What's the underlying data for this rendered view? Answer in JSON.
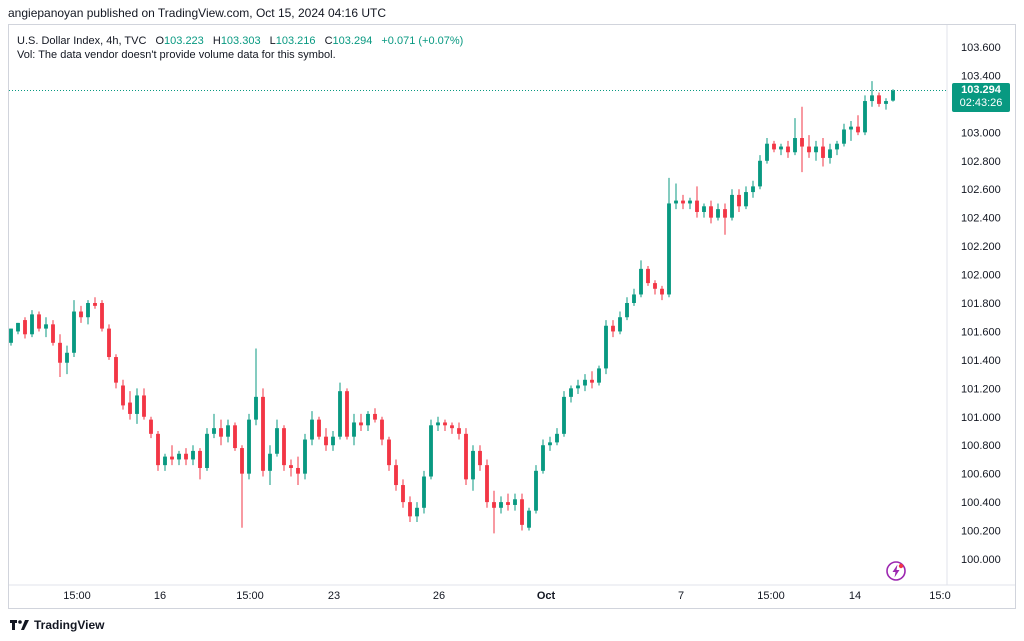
{
  "header": {
    "publisher_text": "angiepanoyan published on TradingView.com, Oct 15, 2024 04:16 UTC"
  },
  "legend": {
    "symbol": "U.S. Dollar Index, 4h, TVC",
    "o_label": "O",
    "o_value": "103.223",
    "h_label": "H",
    "h_value": "103.303",
    "l_label": "L",
    "l_value": "103.216",
    "c_label": "C",
    "c_value": "103.294",
    "change": "+0.071 (+0.07%)",
    "vol_note": "Vol: The data vendor doesn't provide volume data for this symbol."
  },
  "price_label": {
    "price": "103.294",
    "countdown": "02:43:26"
  },
  "footer": {
    "brand": "TradingView"
  },
  "colors": {
    "up": "#089981",
    "down": "#f23645",
    "axis_text": "#131722",
    "last_line": "#089981"
  },
  "icons": {
    "logo": "tradingview-logo-icon",
    "flash": "flash-icon"
  },
  "chart_data": {
    "type": "candlestick",
    "symbol": "U.S. Dollar Index",
    "interval": "4h",
    "source": "TVC",
    "y_axis": {
      "ticks": [
        "103.600",
        "103.400",
        "103.200",
        "103.000",
        "102.800",
        "102.600",
        "102.400",
        "102.200",
        "102.000",
        "101.800",
        "101.600",
        "101.400",
        "101.200",
        "101.000",
        "100.800",
        "100.600",
        "100.400",
        "100.200",
        "100.000"
      ],
      "range": [
        99.9,
        103.7
      ]
    },
    "x_axis": {
      "tick_labels": [
        "15:00",
        "16",
        "15:00",
        "23",
        "26",
        "Oct",
        "7",
        "15:00",
        "14",
        "15:0"
      ]
    },
    "last_price": 103.294,
    "candles": [
      {
        "o": 101.52,
        "h": 101.62,
        "l": 101.5,
        "c": 101.62
      },
      {
        "o": 101.6,
        "h": 101.66,
        "l": 101.58,
        "c": 101.66
      },
      {
        "o": 101.68,
        "h": 101.7,
        "l": 101.55,
        "c": 101.58
      },
      {
        "o": 101.58,
        "h": 101.75,
        "l": 101.56,
        "c": 101.72
      },
      {
        "o": 101.72,
        "h": 101.74,
        "l": 101.6,
        "c": 101.62
      },
      {
        "o": 101.62,
        "h": 101.7,
        "l": 101.56,
        "c": 101.65
      },
      {
        "o": 101.65,
        "h": 101.68,
        "l": 101.5,
        "c": 101.52
      },
      {
        "o": 101.52,
        "h": 101.58,
        "l": 101.28,
        "c": 101.38
      },
      {
        "o": 101.38,
        "h": 101.5,
        "l": 101.3,
        "c": 101.45
      },
      {
        "o": 101.45,
        "h": 101.82,
        "l": 101.42,
        "c": 101.74
      },
      {
        "o": 101.74,
        "h": 101.78,
        "l": 101.66,
        "c": 101.7
      },
      {
        "o": 101.7,
        "h": 101.82,
        "l": 101.65,
        "c": 101.8
      },
      {
        "o": 101.8,
        "h": 101.84,
        "l": 101.76,
        "c": 101.78
      },
      {
        "o": 101.8,
        "h": 101.82,
        "l": 101.6,
        "c": 101.62
      },
      {
        "o": 101.62,
        "h": 101.65,
        "l": 101.4,
        "c": 101.42
      },
      {
        "o": 101.42,
        "h": 101.44,
        "l": 101.2,
        "c": 101.24
      },
      {
        "o": 101.22,
        "h": 101.26,
        "l": 101.05,
        "c": 101.08
      },
      {
        "o": 101.1,
        "h": 101.18,
        "l": 100.98,
        "c": 101.02
      },
      {
        "o": 101.02,
        "h": 101.2,
        "l": 100.95,
        "c": 101.15
      },
      {
        "o": 101.15,
        "h": 101.2,
        "l": 100.98,
        "c": 101.0
      },
      {
        "o": 100.98,
        "h": 101.0,
        "l": 100.85,
        "c": 100.88
      },
      {
        "o": 100.88,
        "h": 100.9,
        "l": 100.62,
        "c": 100.66
      },
      {
        "o": 100.66,
        "h": 100.74,
        "l": 100.62,
        "c": 100.72
      },
      {
        "o": 100.72,
        "h": 100.8,
        "l": 100.66,
        "c": 100.7
      },
      {
        "o": 100.7,
        "h": 100.76,
        "l": 100.66,
        "c": 100.74
      },
      {
        "o": 100.74,
        "h": 100.78,
        "l": 100.66,
        "c": 100.7
      },
      {
        "o": 100.7,
        "h": 100.8,
        "l": 100.66,
        "c": 100.76
      },
      {
        "o": 100.76,
        "h": 100.78,
        "l": 100.56,
        "c": 100.64
      },
      {
        "o": 100.64,
        "h": 100.92,
        "l": 100.62,
        "c": 100.88
      },
      {
        "o": 100.88,
        "h": 101.02,
        "l": 100.85,
        "c": 100.92
      },
      {
        "o": 100.92,
        "h": 100.98,
        "l": 100.8,
        "c": 100.86
      },
      {
        "o": 100.86,
        "h": 100.98,
        "l": 100.82,
        "c": 100.94
      },
      {
        "o": 100.94,
        "h": 100.96,
        "l": 100.76,
        "c": 100.78
      },
      {
        "o": 100.78,
        "h": 100.8,
        "l": 100.22,
        "c": 100.6
      },
      {
        "o": 100.6,
        "h": 101.02,
        "l": 100.56,
        "c": 100.98
      },
      {
        "o": 100.98,
        "h": 101.48,
        "l": 100.94,
        "c": 101.14
      },
      {
        "o": 101.14,
        "h": 101.2,
        "l": 100.58,
        "c": 100.62
      },
      {
        "o": 100.62,
        "h": 100.8,
        "l": 100.52,
        "c": 100.74
      },
      {
        "o": 100.74,
        "h": 100.98,
        "l": 100.72,
        "c": 100.92
      },
      {
        "o": 100.92,
        "h": 100.94,
        "l": 100.62,
        "c": 100.66
      },
      {
        "o": 100.66,
        "h": 100.7,
        "l": 100.58,
        "c": 100.64
      },
      {
        "o": 100.64,
        "h": 100.72,
        "l": 100.52,
        "c": 100.6
      },
      {
        "o": 100.6,
        "h": 100.88,
        "l": 100.56,
        "c": 100.84
      },
      {
        "o": 100.84,
        "h": 101.04,
        "l": 100.8,
        "c": 100.98
      },
      {
        "o": 100.98,
        "h": 101.0,
        "l": 100.84,
        "c": 100.86
      },
      {
        "o": 100.86,
        "h": 100.92,
        "l": 100.76,
        "c": 100.8
      },
      {
        "o": 100.8,
        "h": 100.9,
        "l": 100.76,
        "c": 100.86
      },
      {
        "o": 100.86,
        "h": 101.24,
        "l": 100.84,
        "c": 101.18
      },
      {
        "o": 101.18,
        "h": 101.2,
        "l": 100.84,
        "c": 100.86
      },
      {
        "o": 100.86,
        "h": 101.02,
        "l": 100.8,
        "c": 100.96
      },
      {
        "o": 100.96,
        "h": 101.02,
        "l": 100.9,
        "c": 100.94
      },
      {
        "o": 100.94,
        "h": 101.04,
        "l": 100.9,
        "c": 101.02
      },
      {
        "o": 101.02,
        "h": 101.06,
        "l": 100.96,
        "c": 100.98
      },
      {
        "o": 100.98,
        "h": 101.0,
        "l": 100.8,
        "c": 100.84
      },
      {
        "o": 100.84,
        "h": 100.86,
        "l": 100.62,
        "c": 100.66
      },
      {
        "o": 100.66,
        "h": 100.7,
        "l": 100.48,
        "c": 100.52
      },
      {
        "o": 100.52,
        "h": 100.56,
        "l": 100.36,
        "c": 100.4
      },
      {
        "o": 100.4,
        "h": 100.44,
        "l": 100.26,
        "c": 100.3
      },
      {
        "o": 100.3,
        "h": 100.4,
        "l": 100.26,
        "c": 100.36
      },
      {
        "o": 100.36,
        "h": 100.62,
        "l": 100.32,
        "c": 100.58
      },
      {
        "o": 100.58,
        "h": 100.98,
        "l": 100.56,
        "c": 100.94
      },
      {
        "o": 100.94,
        "h": 101.0,
        "l": 100.9,
        "c": 100.96
      },
      {
        "o": 100.96,
        "h": 100.98,
        "l": 100.9,
        "c": 100.94
      },
      {
        "o": 100.94,
        "h": 100.96,
        "l": 100.88,
        "c": 100.92
      },
      {
        "o": 100.92,
        "h": 100.96,
        "l": 100.84,
        "c": 100.88
      },
      {
        "o": 100.88,
        "h": 100.92,
        "l": 100.52,
        "c": 100.56
      },
      {
        "o": 100.56,
        "h": 100.8,
        "l": 100.48,
        "c": 100.76
      },
      {
        "o": 100.76,
        "h": 100.8,
        "l": 100.62,
        "c": 100.66
      },
      {
        "o": 100.66,
        "h": 100.7,
        "l": 100.36,
        "c": 100.4
      },
      {
        "o": 100.4,
        "h": 100.48,
        "l": 100.18,
        "c": 100.36
      },
      {
        "o": 100.36,
        "h": 100.44,
        "l": 100.32,
        "c": 100.4
      },
      {
        "o": 100.4,
        "h": 100.46,
        "l": 100.34,
        "c": 100.38
      },
      {
        "o": 100.38,
        "h": 100.46,
        "l": 100.34,
        "c": 100.42
      },
      {
        "o": 100.42,
        "h": 100.46,
        "l": 100.2,
        "c": 100.24
      },
      {
        "o": 100.22,
        "h": 100.36,
        "l": 100.2,
        "c": 100.34
      },
      {
        "o": 100.34,
        "h": 100.66,
        "l": 100.32,
        "c": 100.62
      },
      {
        "o": 100.62,
        "h": 100.84,
        "l": 100.6,
        "c": 100.8
      },
      {
        "o": 100.8,
        "h": 100.86,
        "l": 100.76,
        "c": 100.82
      },
      {
        "o": 100.82,
        "h": 100.92,
        "l": 100.8,
        "c": 100.88
      },
      {
        "o": 100.88,
        "h": 101.18,
        "l": 100.86,
        "c": 101.14
      },
      {
        "o": 101.14,
        "h": 101.22,
        "l": 101.1,
        "c": 101.2
      },
      {
        "o": 101.2,
        "h": 101.26,
        "l": 101.16,
        "c": 101.22
      },
      {
        "o": 101.22,
        "h": 101.3,
        "l": 101.18,
        "c": 101.26
      },
      {
        "o": 101.26,
        "h": 101.32,
        "l": 101.2,
        "c": 101.24
      },
      {
        "o": 101.24,
        "h": 101.36,
        "l": 101.22,
        "c": 101.34
      },
      {
        "o": 101.34,
        "h": 101.68,
        "l": 101.3,
        "c": 101.64
      },
      {
        "o": 101.64,
        "h": 101.68,
        "l": 101.56,
        "c": 101.6
      },
      {
        "o": 101.6,
        "h": 101.74,
        "l": 101.58,
        "c": 101.7
      },
      {
        "o": 101.7,
        "h": 101.84,
        "l": 101.68,
        "c": 101.8
      },
      {
        "o": 101.8,
        "h": 101.9,
        "l": 101.78,
        "c": 101.86
      },
      {
        "o": 101.86,
        "h": 102.1,
        "l": 101.84,
        "c": 102.04
      },
      {
        "o": 102.04,
        "h": 102.06,
        "l": 101.92,
        "c": 101.94
      },
      {
        "o": 101.94,
        "h": 101.96,
        "l": 101.86,
        "c": 101.9
      },
      {
        "o": 101.9,
        "h": 101.92,
        "l": 101.82,
        "c": 101.86
      },
      {
        "o": 101.86,
        "h": 102.68,
        "l": 101.84,
        "c": 102.5
      },
      {
        "o": 102.5,
        "h": 102.64,
        "l": 102.46,
        "c": 102.52
      },
      {
        "o": 102.52,
        "h": 102.56,
        "l": 102.46,
        "c": 102.5
      },
      {
        "o": 102.5,
        "h": 102.54,
        "l": 102.46,
        "c": 102.52
      },
      {
        "o": 102.52,
        "h": 102.62,
        "l": 102.4,
        "c": 102.44
      },
      {
        "o": 102.44,
        "h": 102.5,
        "l": 102.4,
        "c": 102.48
      },
      {
        "o": 102.48,
        "h": 102.52,
        "l": 102.36,
        "c": 102.4
      },
      {
        "o": 102.4,
        "h": 102.5,
        "l": 102.38,
        "c": 102.46
      },
      {
        "o": 102.46,
        "h": 102.5,
        "l": 102.28,
        "c": 102.4
      },
      {
        "o": 102.4,
        "h": 102.6,
        "l": 102.38,
        "c": 102.56
      },
      {
        "o": 102.56,
        "h": 102.6,
        "l": 102.44,
        "c": 102.48
      },
      {
        "o": 102.48,
        "h": 102.62,
        "l": 102.46,
        "c": 102.58
      },
      {
        "o": 102.58,
        "h": 102.66,
        "l": 102.54,
        "c": 102.62
      },
      {
        "o": 102.62,
        "h": 102.84,
        "l": 102.6,
        "c": 102.8
      },
      {
        "o": 102.8,
        "h": 102.96,
        "l": 102.78,
        "c": 102.92
      },
      {
        "o": 102.92,
        "h": 102.94,
        "l": 102.86,
        "c": 102.88
      },
      {
        "o": 102.88,
        "h": 102.92,
        "l": 102.84,
        "c": 102.9
      },
      {
        "o": 102.9,
        "h": 102.94,
        "l": 102.82,
        "c": 102.86
      },
      {
        "o": 102.86,
        "h": 103.1,
        "l": 102.84,
        "c": 102.96
      },
      {
        "o": 102.96,
        "h": 103.18,
        "l": 102.72,
        "c": 102.9
      },
      {
        "o": 102.9,
        "h": 102.98,
        "l": 102.82,
        "c": 102.86
      },
      {
        "o": 102.86,
        "h": 102.94,
        "l": 102.8,
        "c": 102.9
      },
      {
        "o": 102.9,
        "h": 102.96,
        "l": 102.76,
        "c": 102.82
      },
      {
        "o": 102.82,
        "h": 102.92,
        "l": 102.78,
        "c": 102.88
      },
      {
        "o": 102.88,
        "h": 102.94,
        "l": 102.84,
        "c": 102.92
      },
      {
        "o": 102.92,
        "h": 103.06,
        "l": 102.9,
        "c": 103.02
      },
      {
        "o": 103.02,
        "h": 103.08,
        "l": 102.94,
        "c": 103.04
      },
      {
        "o": 103.04,
        "h": 103.12,
        "l": 102.98,
        "c": 103.0
      },
      {
        "o": 103.0,
        "h": 103.26,
        "l": 102.98,
        "c": 103.22
      },
      {
        "o": 103.22,
        "h": 103.36,
        "l": 103.18,
        "c": 103.26
      },
      {
        "o": 103.26,
        "h": 103.28,
        "l": 103.18,
        "c": 103.2
      },
      {
        "o": 103.2,
        "h": 103.24,
        "l": 103.16,
        "c": 103.22
      },
      {
        "o": 103.223,
        "h": 103.303,
        "l": 103.216,
        "c": 103.294
      }
    ]
  }
}
